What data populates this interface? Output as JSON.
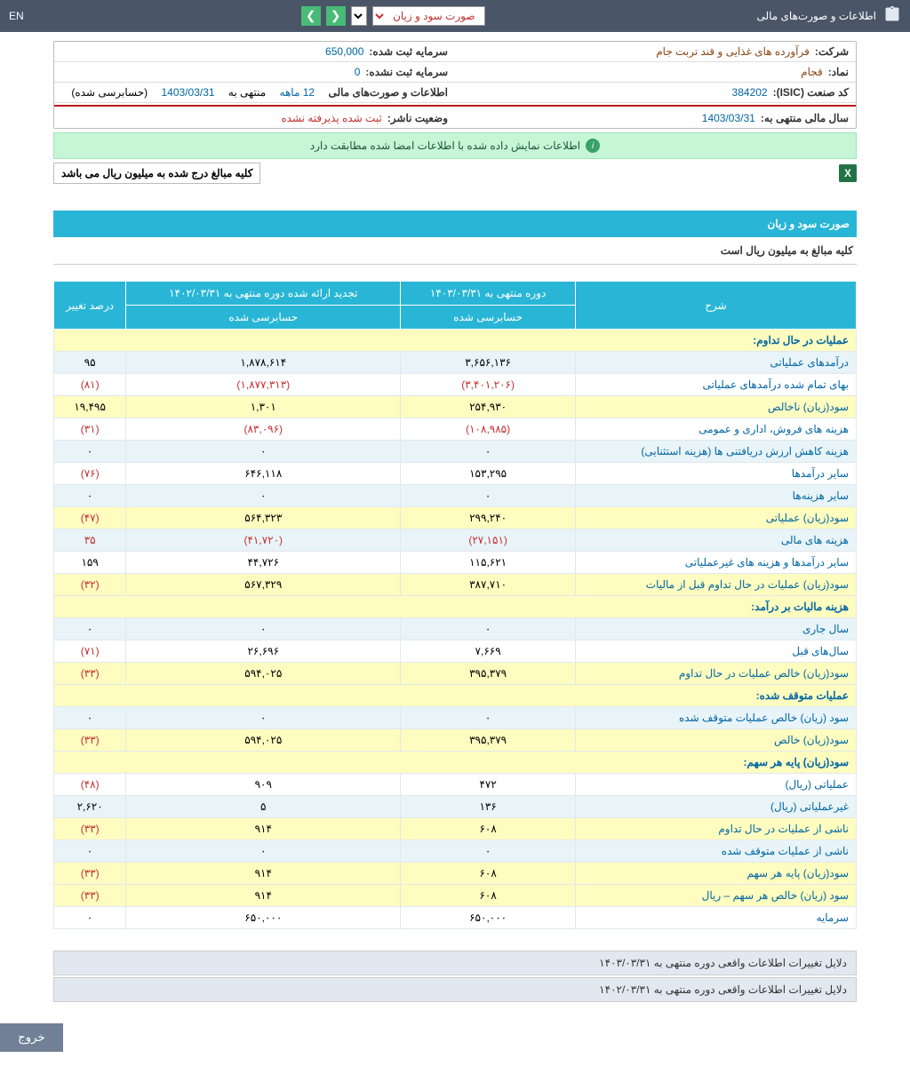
{
  "topbar": {
    "title": "اطلاعات و صورت‌های مالی",
    "report_label": "صورت سود و زیان",
    "lang": "EN"
  },
  "info": {
    "company_label": "شرکت:",
    "company": "فرآورده های غذایی و قند تربت جام",
    "capital_reg_label": "سرمایه ثبت شده:",
    "capital_reg": "650,000",
    "symbol_label": "نماد:",
    "symbol": "قجام",
    "capital_unreg_label": "سرمایه ثبت نشده:",
    "capital_unreg": "0",
    "isic_label": "کد صنعت (ISIC):",
    "isic": "384202",
    "period_label": "اطلاعات و صورت‌های مالی",
    "period_val": "12 ماهه",
    "period_end_lbl": "منتهی به",
    "period_end": "1403/03/31",
    "audited": "(حسابرسی شده)",
    "fy_label": "سال مالی منتهی به:",
    "fy": "1403/03/31",
    "publisher_label": "وضعیت ناشر:",
    "publisher": "ثبت شده پذیرفته نشده"
  },
  "alert": "اطلاعات نمایش داده شده با اطلاعات امضا شده مطابقت دارد",
  "note": "کلیه مبالغ درج شده به میلیون ریال می باشد",
  "section": {
    "title": "صورت سود و زیان",
    "sub": "کلیه مبالغ به میلیون ریال است"
  },
  "headers": {
    "desc": "شرح",
    "curr": "دوره منتهی به ۱۴۰۳/۰۳/۳۱",
    "prev": "تجدید ارائه شده دوره منتهی به ۱۴۰۲/۰۳/۳۱",
    "pct": "درصد تغییر",
    "audited": "حسابرسی شده"
  },
  "rows": [
    {
      "type": "hdr",
      "desc": "عملیات در حال تداوم:"
    },
    {
      "type": "alt",
      "desc": "درآمدهای عملیاتی",
      "c": "۳,۶۵۶,۱۳۶",
      "p": "۱,۸۷۸,۶۱۴",
      "pc": "۹۵"
    },
    {
      "type": "",
      "desc": "بهای تمام شده درآمدهای عملیاتی",
      "c": "(۳,۴۰۱,۲۰۶)",
      "p": "(۱,۸۷۷,۳۱۳)",
      "pc": "(۸۱)",
      "neg": true
    },
    {
      "type": "subtotal",
      "desc": "سود(زیان) ناخالص",
      "c": "۲۵۴,۹۳۰",
      "p": "۱,۳۰۱",
      "pc": "۱۹,۴۹۵"
    },
    {
      "type": "",
      "desc": "هزینه های فروش، اداری و عمومی",
      "c": "(۱۰۸,۹۸۵)",
      "p": "(۸۳,۰۹۶)",
      "pc": "(۳۱)",
      "neg": true
    },
    {
      "type": "alt",
      "desc": "هزینه کاهش ارزش دریافتنی ها (هزینه استثنایی)",
      "c": "۰",
      "p": "۰",
      "pc": "۰"
    },
    {
      "type": "",
      "desc": "سایر درآمدها",
      "c": "۱۵۳,۲۹۵",
      "p": "۶۴۶,۱۱۸",
      "pc": "(۷۶)",
      "pcneg": true
    },
    {
      "type": "alt",
      "desc": "سایر هزینه‌ها",
      "c": "۰",
      "p": "۰",
      "pc": "۰"
    },
    {
      "type": "subtotal",
      "desc": "سود(زیان) عملیاتی",
      "c": "۲۹۹,۲۴۰",
      "p": "۵۶۴,۳۲۳",
      "pc": "(۴۷)",
      "pcneg": true
    },
    {
      "type": "alt",
      "desc": "هزینه های مالی",
      "c": "(۲۷,۱۵۱)",
      "p": "(۴۱,۷۲۰)",
      "pc": "۳۵",
      "neg": true
    },
    {
      "type": "",
      "desc": "سایر درآمدها و هزینه های غیرعملیاتی",
      "c": "۱۱۵,۶۲۱",
      "p": "۴۴,۷۲۶",
      "pc": "۱۵۹"
    },
    {
      "type": "subtotal",
      "desc": "سود(زیان) عملیات در حال تداوم قبل از مالیات",
      "c": "۳۸۷,۷۱۰",
      "p": "۵۶۷,۳۲۹",
      "pc": "(۳۲)",
      "pcneg": true
    },
    {
      "type": "hdr",
      "desc": "هزینه مالیات بر درآمد:"
    },
    {
      "type": "alt",
      "desc": "سال جاری",
      "c": "۰",
      "p": "۰",
      "pc": "۰"
    },
    {
      "type": "",
      "desc": "سال‌های قبل",
      "c": "۷,۶۶۹",
      "p": "۲۶,۶۹۶",
      "pc": "(۷۱)",
      "pcneg": true
    },
    {
      "type": "subtotal",
      "desc": "سود(زیان) خالص عملیات در حال تداوم",
      "c": "۳۹۵,۳۷۹",
      "p": "۵۹۴,۰۲۵",
      "pc": "(۳۳)",
      "pcneg": true
    },
    {
      "type": "hdr",
      "desc": "عملیات متوقف شده:"
    },
    {
      "type": "alt",
      "desc": "سود (زیان) خالص عملیات متوقف شده",
      "c": "۰",
      "p": "۰",
      "pc": "۰"
    },
    {
      "type": "subtotal",
      "desc": "سود(زیان) خالص",
      "c": "۳۹۵,۳۷۹",
      "p": "۵۹۴,۰۲۵",
      "pc": "(۳۳)",
      "pcneg": true
    },
    {
      "type": "hdr",
      "desc": "سود(زیان) پایه هر سهم:"
    },
    {
      "type": "",
      "desc": "عملیاتی (ریال)",
      "c": "۴۷۲",
      "p": "۹۰۹",
      "pc": "(۴۸)",
      "pcneg": true
    },
    {
      "type": "alt",
      "desc": "غیرعملیاتی (ریال)",
      "c": "۱۳۶",
      "p": "۵",
      "pc": "۲,۶۲۰"
    },
    {
      "type": "subtotal",
      "desc": "ناشی از عملیات در حال تداوم",
      "c": "۶۰۸",
      "p": "۹۱۴",
      "pc": "(۳۳)",
      "pcneg": true
    },
    {
      "type": "alt",
      "desc": "ناشی از عملیات متوقف شده",
      "c": "۰",
      "p": "۰",
      "pc": "۰"
    },
    {
      "type": "subtotal",
      "desc": "سود(زیان) پایه هر سهم",
      "c": "۶۰۸",
      "p": "۹۱۴",
      "pc": "(۳۳)",
      "pcneg": true
    },
    {
      "type": "subtotal",
      "desc": "سود (زیان) خالص هر سهم – ریال",
      "c": "۶۰۸",
      "p": "۹۱۴",
      "pc": "(۳۳)",
      "pcneg": true
    },
    {
      "type": "",
      "desc": "سرمایه",
      "c": "۶۵۰,۰۰۰",
      "p": "۶۵۰,۰۰۰",
      "pc": "۰"
    }
  ],
  "footer1": "دلایل تغییرات اطلاعات واقعی دوره منتهی به ۱۴۰۳/۰۳/۳۱",
  "footer2": "دلایل تغییرات اطلاعات واقعی دوره منتهی به ۱۴۰۲/۰۳/۳۱",
  "exit": "خروج"
}
